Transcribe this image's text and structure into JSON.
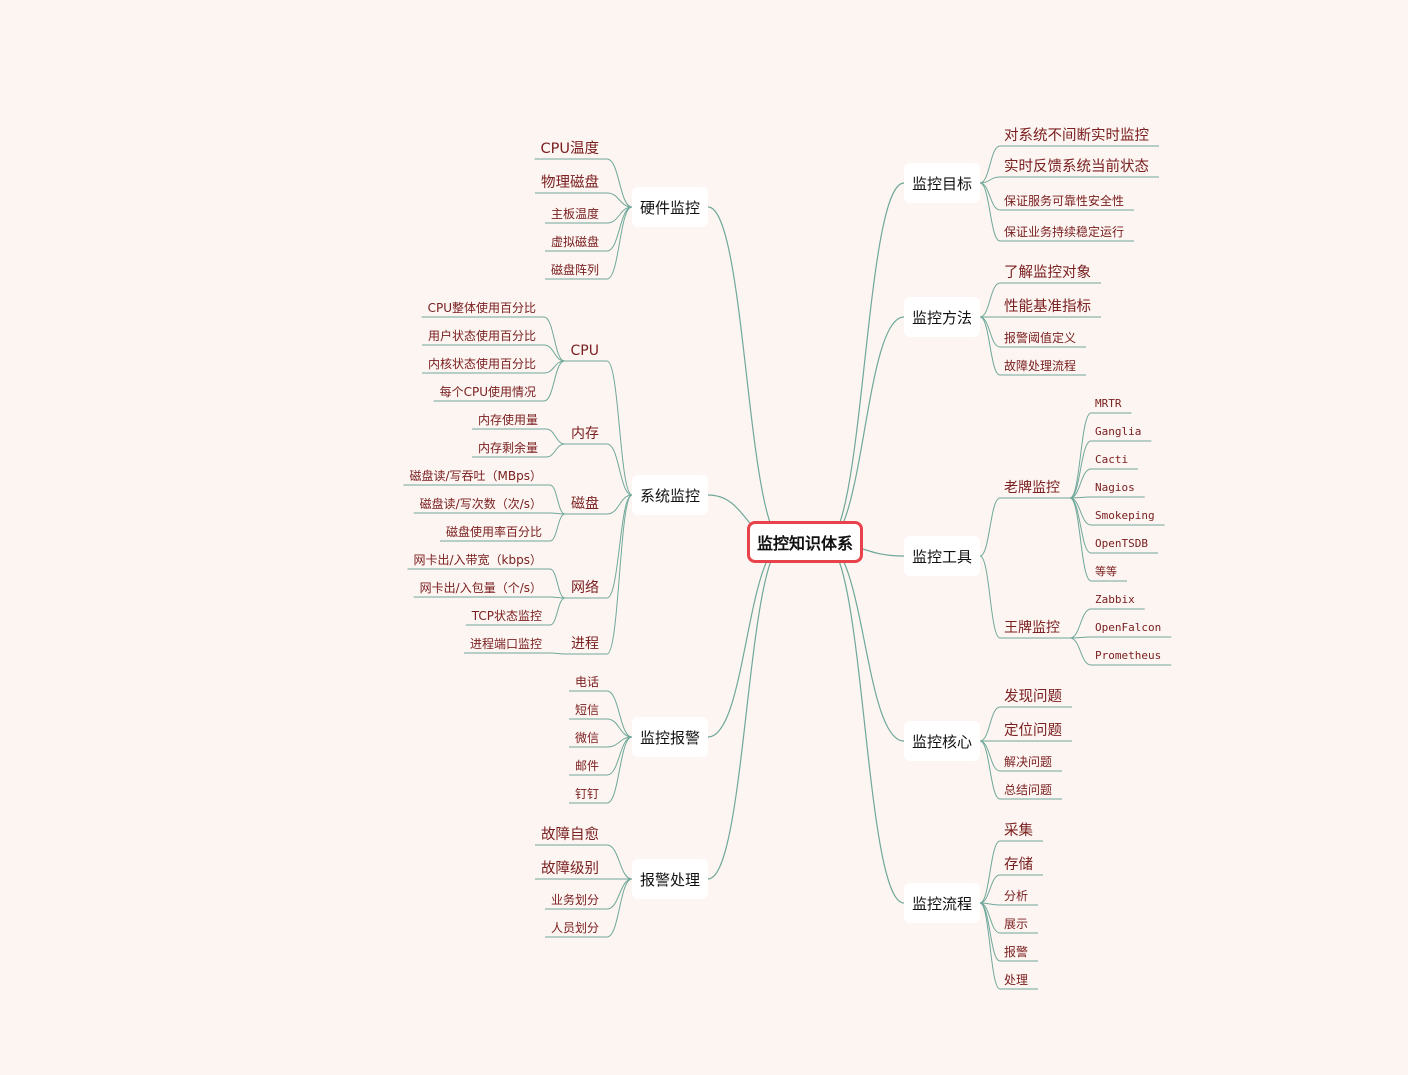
{
  "root": "监控知识体系",
  "branches": [
    {
      "id": "hardware",
      "label": "硬件监控",
      "children": [
        "CPU温度",
        "物理磁盘",
        "主板温度",
        "虚拟磁盘",
        "磁盘阵列"
      ]
    },
    {
      "id": "system",
      "label": "系统监控",
      "groups": [
        {
          "label": "CPU",
          "children": [
            "CPU整体使用百分比",
            "用户状态使用百分比",
            "内核状态使用百分比",
            "每个CPU使用情况"
          ]
        },
        {
          "label": "内存",
          "children": [
            "内存使用量",
            "内存剩余量"
          ]
        },
        {
          "label": "磁盘",
          "children": [
            "磁盘读/写吞吐（MBps）",
            "磁盘读/写次数（次/s）",
            "磁盘使用率百分比"
          ]
        },
        {
          "label": "网络",
          "children": [
            "网卡出/入带宽（kbps）",
            "网卡出/入包量（个/s）",
            "TCP状态监控"
          ]
        },
        {
          "label": "进程",
          "children": [
            "进程端口监控"
          ]
        }
      ]
    },
    {
      "id": "alarm",
      "label": "监控报警",
      "children": [
        "电话",
        "短信",
        "微信",
        "邮件",
        "钉钉"
      ]
    },
    {
      "id": "alarm-handling",
      "label": "报警处理",
      "children": [
        "故障自愈",
        "故障级别",
        "业务划分",
        "人员划分"
      ]
    },
    {
      "id": "goal",
      "label": "监控目标",
      "children": [
        "对系统不间断实时监控",
        "实时反馈系统当前状态",
        "保证服务可靠性安全性",
        "保证业务持续稳定运行"
      ]
    },
    {
      "id": "method",
      "label": "监控方法",
      "children": [
        "了解监控对象",
        "性能基准指标",
        "报警阈值定义",
        "故障处理流程"
      ]
    },
    {
      "id": "tools",
      "label": "监控工具",
      "groups": [
        {
          "label": "老牌监控",
          "children": [
            "MRTR",
            "Ganglia",
            "Cacti",
            "Nagios",
            "Smokeping",
            "OpenTSDB",
            "等等"
          ]
        },
        {
          "label": "王牌监控",
          "children": [
            "Zabbix",
            "OpenFalcon",
            "Prometheus"
          ]
        }
      ]
    },
    {
      "id": "core",
      "label": "监控核心",
      "children": [
        "发现问题",
        "定位问题",
        "解决问题",
        "总结问题"
      ]
    },
    {
      "id": "flow",
      "label": "监控流程",
      "children": [
        "采集",
        "存储",
        "分析",
        "展示",
        "报警",
        "处理"
      ]
    }
  ],
  "colors": {
    "background": "#fdf5f2",
    "link": "#6fa89a",
    "root_border": "#e8424a",
    "leaf_text": "#7a2020"
  }
}
